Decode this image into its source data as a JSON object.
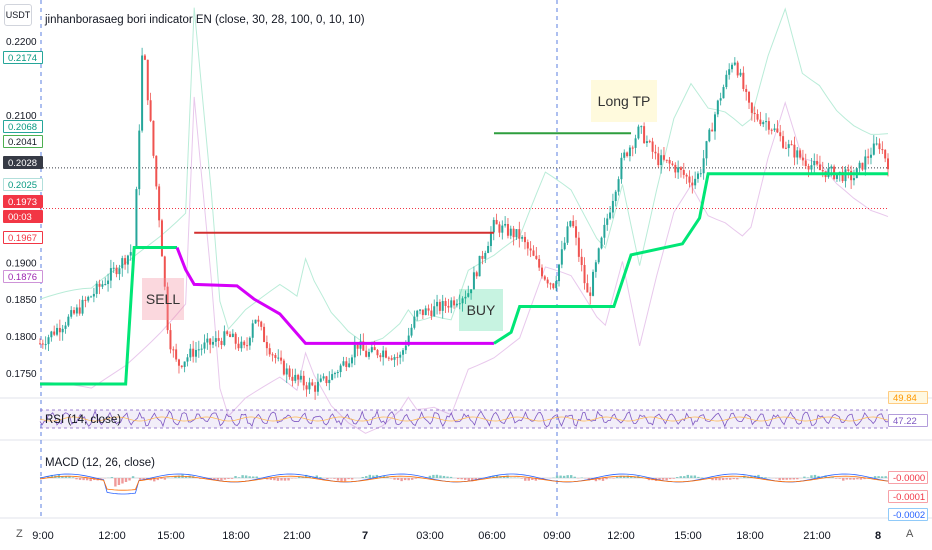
{
  "unit": "USDT",
  "indicator_title": "jinhanborasaeg bori indicator EN (close, 30, 28, 100, 0, 10, 10)",
  "rsi_title": "RSI (14, close)",
  "macd_title": "MACD (12, 26, close)",
  "markers": {
    "sell": "SELL",
    "buy": "BUY",
    "long_tp": "Long TP"
  },
  "corner_left": "Z",
  "corner_right": "A",
  "price_axis": {
    "ticks": [
      "0.2200",
      "0.2100",
      "0.1900",
      "0.1850",
      "0.1800",
      "0.1750"
    ],
    "badges": [
      {
        "text": "0.2174",
        "fg": "#089981",
        "bg": "#ffffff",
        "border": "#26a69a"
      },
      {
        "text": "0.2068",
        "fg": "#089981",
        "bg": "#ffffff",
        "border": "#26a69a"
      },
      {
        "text": "0.2041",
        "fg": "#131722",
        "bg": "#ffffff",
        "border": "#4caf50"
      },
      {
        "text": "0.2028",
        "fg": "#ffffff",
        "bg": "#363a45",
        "border": "#363a45"
      },
      {
        "text": "0.2025",
        "fg": "#089981",
        "bg": "#ffffff",
        "border": "#b2dfdb"
      },
      {
        "text": "0.1973",
        "fg": "#ffffff",
        "bg": "#f23645",
        "border": "#f23645"
      },
      {
        "text": "00:03",
        "fg": "#ffffff",
        "bg": "#f23645",
        "border": "#f23645"
      },
      {
        "text": "0.1967",
        "fg": "#f23645",
        "bg": "#ffffff",
        "border": "#f23645"
      },
      {
        "text": "0.1876",
        "fg": "#9c27b0",
        "bg": "#ffffff",
        "border": "#ce93d8"
      }
    ]
  },
  "rsi_badges": [
    {
      "text": "49.84",
      "fg": "#ff9800",
      "bg": "#fff8e1",
      "border": "#ffcc80"
    },
    {
      "text": "47.22",
      "fg": "#7e57c2",
      "bg": "#ffffff",
      "border": "#b39ddb"
    }
  ],
  "macd_badges": [
    {
      "text": "-0.0000",
      "fg": "#f23645",
      "bg": "#ffffff",
      "border": "#f7a1a8"
    },
    {
      "text": "-0.0001",
      "fg": "#f23645",
      "bg": "#ffffff",
      "border": "#f7a1a8"
    },
    {
      "text": "-0.0002",
      "fg": "#2962ff",
      "bg": "#ffffff",
      "border": "#90caf9"
    }
  ],
  "time_axis": [
    "9:00",
    "12:00",
    "15:00",
    "18:00",
    "21:00",
    "7",
    "03:00",
    "06:00",
    "09:00",
    "12:00",
    "15:00",
    "18:00",
    "21:00",
    "8"
  ],
  "colors": {
    "bull": "#26a69a",
    "bear": "#ef5350",
    "trail_up": "#00e676",
    "trail_down": "#d500f9",
    "sell_level": "#d32f2f",
    "tp_level": "#2e9e3e",
    "band": "#b9ecd8",
    "lower_band": "#e8c8ec"
  },
  "chart_data": {
    "type": "candlestick",
    "symbol_quote": "USDT",
    "x": [
      "9:00",
      "12:00",
      "15:00",
      "18:00",
      "21:00",
      "7",
      "03:00",
      "06:00",
      "09:00",
      "12:00",
      "15:00",
      "18:00",
      "21:00",
      "8"
    ],
    "ylim": [
      0.172,
      0.2215
    ],
    "close_path": [
      [
        0,
        0.179
      ],
      [
        4,
        0.183
      ],
      [
        8,
        0.188
      ],
      [
        11,
        0.192
      ],
      [
        12,
        0.22
      ],
      [
        14,
        0.195
      ],
      [
        15,
        0.18
      ],
      [
        16,
        0.176
      ],
      [
        18,
        0.178
      ],
      [
        20,
        0.179
      ],
      [
        22,
        0.18
      ],
      [
        24,
        0.178
      ],
      [
        25,
        0.183
      ],
      [
        26,
        0.18
      ],
      [
        28,
        0.176
      ],
      [
        30,
        0.174
      ],
      [
        32,
        0.173
      ],
      [
        34,
        0.1745
      ],
      [
        36,
        0.177
      ],
      [
        37,
        0.179
      ],
      [
        38,
        0.1775
      ],
      [
        40,
        0.178
      ],
      [
        42,
        0.177
      ],
      [
        44,
        0.183
      ],
      [
        47,
        0.184
      ],
      [
        50,
        0.186
      ],
      [
        53,
        0.195
      ],
      [
        56,
        0.1935
      ],
      [
        59,
        0.188
      ],
      [
        60,
        0.187
      ],
      [
        62,
        0.196
      ],
      [
        64,
        0.185
      ],
      [
        66,
        0.195
      ],
      [
        68,
        0.204
      ],
      [
        70,
        0.208
      ],
      [
        72,
        0.204
      ],
      [
        74,
        0.203
      ],
      [
        76,
        0.201
      ],
      [
        77,
        0.202
      ],
      [
        79,
        0.211
      ],
      [
        81,
        0.218
      ],
      [
        83,
        0.21
      ],
      [
        85,
        0.209
      ],
      [
        87,
        0.206
      ],
      [
        89,
        0.204
      ],
      [
        91,
        0.2025
      ],
      [
        93,
        0.202
      ],
      [
        95,
        0.2015
      ],
      [
        97,
        0.205
      ],
      [
        98,
        0.206
      ],
      [
        99,
        0.2035
      ]
    ],
    "trailing_stop": [
      {
        "color": "trail_up",
        "points": [
          [
            0,
            0.1735
          ],
          [
            10,
            0.1735
          ],
          [
            11,
            0.192
          ],
          [
            16,
            0.192
          ]
        ]
      },
      {
        "color": "trail_down",
        "points": [
          [
            16,
            0.192
          ],
          [
            17,
            0.189
          ],
          [
            18,
            0.187
          ],
          [
            23,
            0.1868
          ],
          [
            25,
            0.185
          ],
          [
            28,
            0.183
          ],
          [
            31,
            0.179
          ],
          [
            53,
            0.179
          ]
        ]
      },
      {
        "color": "trail_up",
        "points": [
          [
            53,
            0.179
          ],
          [
            55,
            0.1805
          ],
          [
            56,
            0.184
          ],
          [
            67,
            0.184
          ],
          [
            69,
            0.191
          ],
          [
            75,
            0.1925
          ],
          [
            77,
            0.196
          ],
          [
            78,
            0.202
          ],
          [
            99,
            0.202
          ]
        ]
      }
    ],
    "levels": [
      {
        "name": "sell",
        "y": 0.194,
        "x_from": 18,
        "x_to": 53
      },
      {
        "name": "long_tp",
        "y": 0.2075,
        "x_from": 53,
        "x_to": 69
      }
    ],
    "rsi": {
      "name": "RSI (14, close)",
      "last": 47.22,
      "ma": 49.84
    },
    "macd": {
      "name": "MACD (12, 26, close)",
      "values": [
        -0.0,
        -0.0001,
        -0.0002
      ]
    }
  }
}
